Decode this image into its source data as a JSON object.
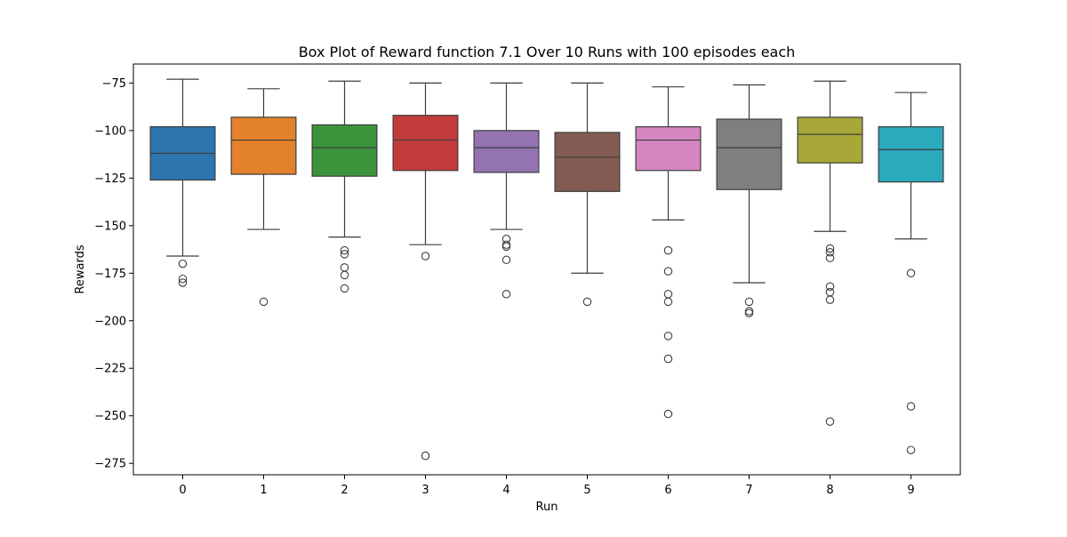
{
  "chart_data": {
    "type": "box",
    "title": "Box Plot of Reward function 7.1 Over 10 Runs with 100 episodes each",
    "xlabel": "Run",
    "ylabel": "Rewards",
    "categories": [
      "0",
      "1",
      "2",
      "3",
      "4",
      "5",
      "6",
      "7",
      "8",
      "9"
    ],
    "ylim": [
      -281,
      -65
    ],
    "yticks": [
      -75,
      -100,
      -125,
      -150,
      -175,
      -200,
      -225,
      -250,
      -275
    ],
    "grid": false,
    "legend": "none",
    "series": [
      {
        "category": "0",
        "color": "#2f75b0",
        "whisker_low": -166,
        "q1": -126,
        "median": -112,
        "q3": -98,
        "whisker_high": -73,
        "outliers": [
          -170,
          -178,
          -180
        ]
      },
      {
        "category": "1",
        "color": "#e3812c",
        "whisker_low": -152,
        "q1": -123,
        "median": -105,
        "q3": -93,
        "whisker_high": -78,
        "outliers": [
          -190
        ]
      },
      {
        "category": "2",
        "color": "#3b933b",
        "whisker_low": -156,
        "q1": -124,
        "median": -109,
        "q3": -97,
        "whisker_high": -74,
        "outliers": [
          -163,
          -165,
          -172,
          -176,
          -183
        ]
      },
      {
        "category": "3",
        "color": "#c13b3c",
        "whisker_low": -160,
        "q1": -121,
        "median": -105,
        "q3": -92,
        "whisker_high": -75,
        "outliers": [
          -166,
          -271
        ]
      },
      {
        "category": "4",
        "color": "#9373b1",
        "whisker_low": -152,
        "q1": -122,
        "median": -109,
        "q3": -100,
        "whisker_high": -75,
        "outliers": [
          -157,
          -160,
          -161,
          -168,
          -186
        ]
      },
      {
        "category": "5",
        "color": "#845b53",
        "whisker_low": -175,
        "q1": -132,
        "median": -114,
        "q3": -101,
        "whisker_high": -75,
        "outliers": [
          -190
        ]
      },
      {
        "category": "6",
        "color": "#d585bf",
        "whisker_low": -147,
        "q1": -121,
        "median": -105,
        "q3": -98,
        "whisker_high": -77,
        "outliers": [
          -163,
          -174,
          -186,
          -190,
          -208,
          -220,
          -249
        ]
      },
      {
        "category": "7",
        "color": "#7f7f7f",
        "whisker_low": -180,
        "q1": -131,
        "median": -109,
        "q3": -94,
        "whisker_high": -76,
        "outliers": [
          -190,
          -195,
          -196
        ]
      },
      {
        "category": "8",
        "color": "#a8a838",
        "whisker_low": -153,
        "q1": -117,
        "median": -102,
        "q3": -93,
        "whisker_high": -74,
        "outliers": [
          -162,
          -164,
          -167,
          -182,
          -185,
          -189,
          -253
        ]
      },
      {
        "category": "9",
        "color": "#2ba9bd",
        "whisker_low": -157,
        "q1": -127,
        "median": -110,
        "q3": -98,
        "whisker_high": -80,
        "outliers": [
          -175,
          -245,
          -268
        ]
      }
    ]
  }
}
